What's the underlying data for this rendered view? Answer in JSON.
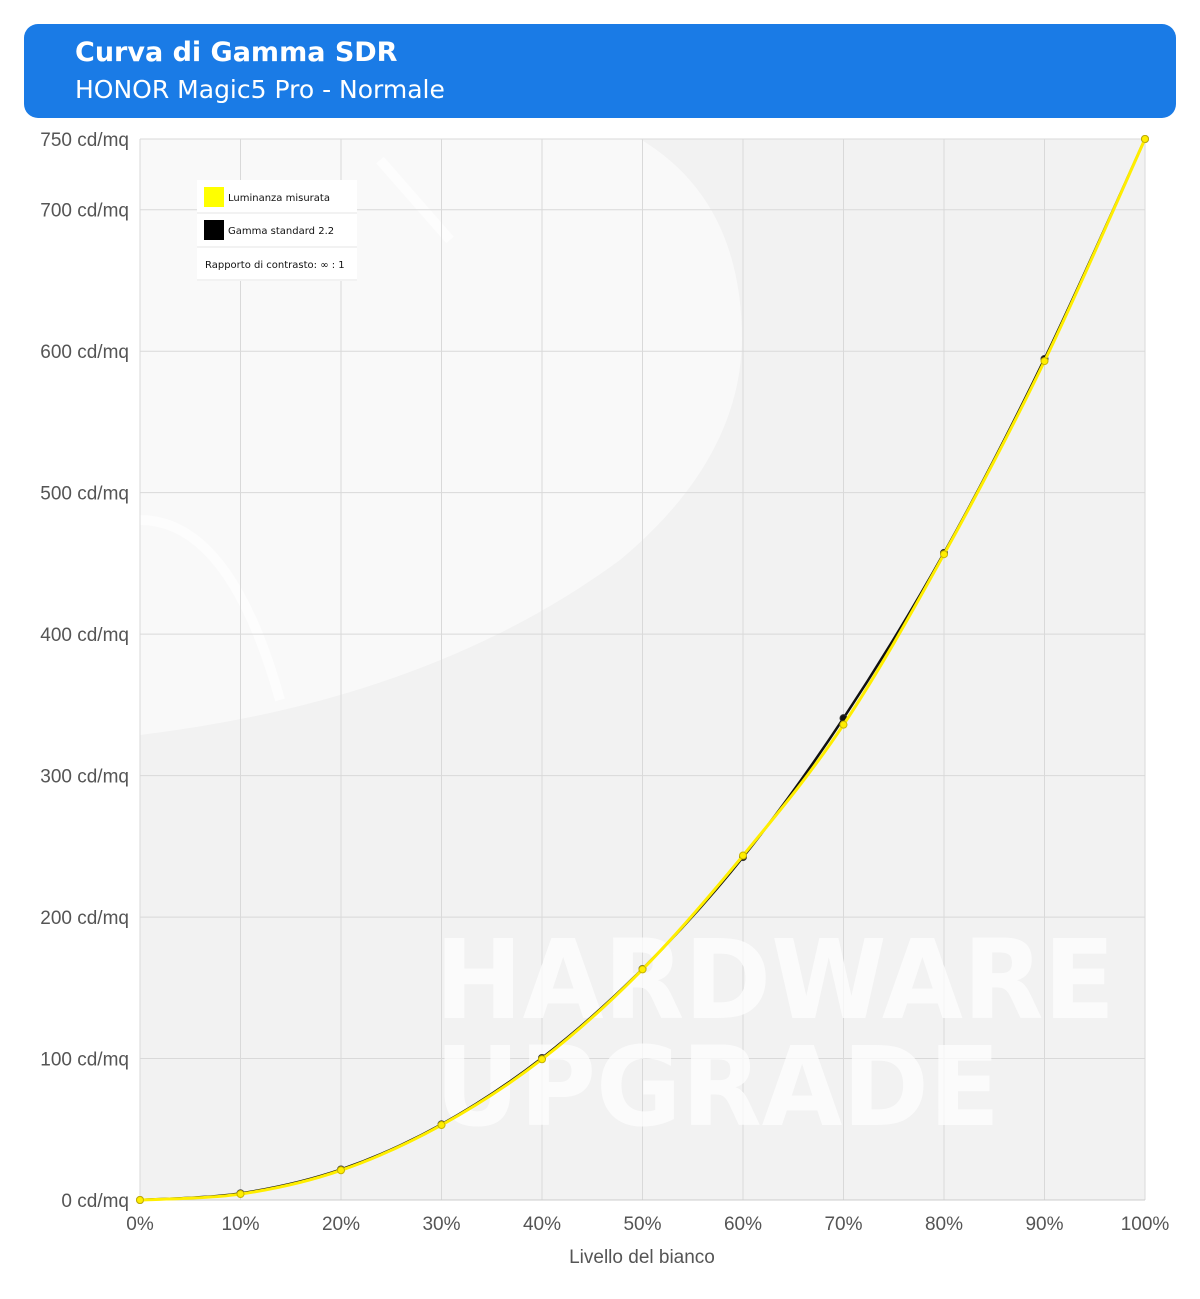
{
  "header": {
    "title": "Curva di Gamma SDR",
    "subtitle": "HONOR Magic5 Pro - Normale"
  },
  "watermark": {
    "line1": "HARDWARE",
    "line2": "UPGRADE"
  },
  "legend": {
    "items": [
      {
        "label": "Luminanza misurata",
        "color": "#ffff00"
      },
      {
        "label": "Gamma standard 2.2",
        "color": "#000000"
      }
    ],
    "contrast_label": "Rapporto di contrasto: ∞ : 1"
  },
  "chart_data": {
    "type": "line",
    "title": "Curva di Gamma SDR",
    "subtitle": "HONOR Magic5 Pro - Normale",
    "xlabel": "Livello del bianco",
    "ylabel": "",
    "x": [
      0,
      10,
      20,
      30,
      40,
      50,
      60,
      70,
      80,
      90,
      100
    ],
    "x_tick_labels": [
      "0%",
      "10%",
      "20%",
      "30%",
      "40%",
      "50%",
      "60%",
      "70%",
      "80%",
      "90%",
      "100%"
    ],
    "y_ticks": [
      0,
      100,
      200,
      300,
      400,
      500,
      600,
      700,
      750
    ],
    "y_tick_labels": [
      "0 cd/mq",
      "100 cd/mq",
      "200 cd/mq",
      "300 cd/mq",
      "400 cd/mq",
      "500 cd/mq",
      "600 cd/mq",
      "700 cd/mq",
      "750 cd/mq"
    ],
    "xlim": [
      0,
      100
    ],
    "ylim": [
      0,
      750
    ],
    "grid": true,
    "legend_position": "top-left",
    "series": [
      {
        "name": "Gamma standard 2.2",
        "color": "#111111",
        "values": [
          0,
          4.7,
          21.6,
          53.5,
          100.4,
          163.3,
          242.4,
          340.6,
          457.4,
          594.5,
          750
        ]
      },
      {
        "name": "Luminanza misurata",
        "color": "#ffee00",
        "values": [
          0,
          4.2,
          21.0,
          53.0,
          99.5,
          163.0,
          243.5,
          336.0,
          456.5,
          593.0,
          750
        ]
      }
    ]
  }
}
